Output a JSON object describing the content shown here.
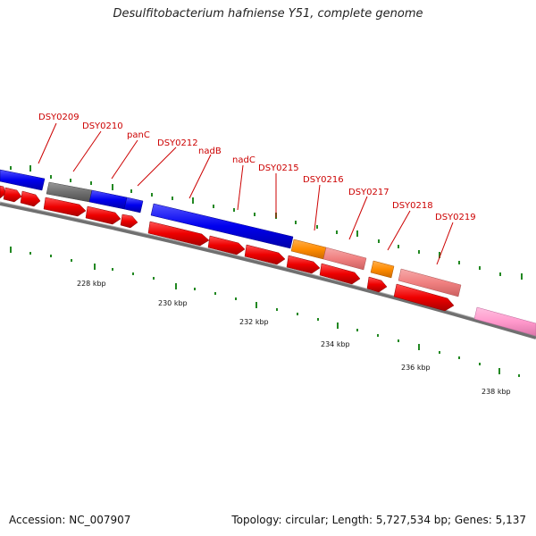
{
  "title": "Desulfitobacterium hafniense Y51, complete genome",
  "footer": {
    "accession": "Accession: NC_007907",
    "summary": "Topology: circular; Length: 5,727,534 bp; Genes: 5,137"
  },
  "gene_labels": [
    "DSY0209",
    "DSY0210",
    "panC",
    "DSY0212",
    "nadB",
    "nadC",
    "DSY0215",
    "DSY0216",
    "DSY0217",
    "DSY0218",
    "DSY0219"
  ],
  "scale_labels": [
    "228 kbp",
    "230 kbp",
    "232 kbp",
    "234 kbp",
    "236 kbp",
    "238 kbp"
  ],
  "colors": {
    "cds_forward": "#ee0000",
    "feature_blue": "#0000ee",
    "feature_gray": "#707070",
    "feature_orange": "#ff8c00",
    "feature_salmon": "#f08080",
    "feature_pink": "#ff99cc",
    "backbone": "#808080",
    "tick": "#228822",
    "label": "#cc0000"
  }
}
